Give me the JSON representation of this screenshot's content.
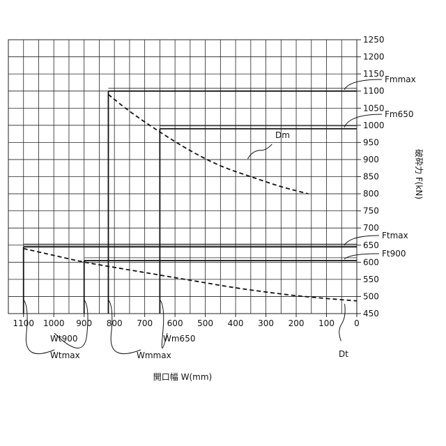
{
  "chart_data": {
    "type": "line",
    "xlabel": "開口幅 W(mm)",
    "ylabel": "破砕力 F(kN)",
    "xlim": [
      1150,
      0
    ],
    "ylim": [
      450,
      1250
    ],
    "x_ticks": [
      1100,
      1000,
      900,
      800,
      700,
      600,
      500,
      400,
      300,
      200,
      100,
      0
    ],
    "y_ticks": [
      450,
      500,
      550,
      600,
      650,
      700,
      750,
      800,
      850,
      900,
      950,
      1000,
      1050,
      1100,
      1150,
      1200,
      1250
    ],
    "grid": true,
    "series": [
      {
        "name": "Dm",
        "style": "dashed",
        "x": [
          820,
          750,
          650,
          550,
          450,
          350,
          250,
          160
        ],
        "y": [
          1090,
          1040,
          980,
          925,
          880,
          850,
          820,
          800
        ]
      },
      {
        "name": "Dt",
        "style": "dashed",
        "x": [
          1100,
          1000,
          900,
          800,
          700,
          600,
          500,
          400,
          300,
          200,
          100,
          0
        ],
        "y": [
          640,
          620,
          600,
          585,
          570,
          555,
          540,
          525,
          513,
          502,
          494,
          487
        ]
      }
    ],
    "reference_lines": [
      {
        "label": "Fmmax",
        "y": 1100,
        "x_from": 820,
        "x_to": 0
      },
      {
        "label": "Fm650",
        "y": 990,
        "x_from": 650,
        "x_to": 0
      },
      {
        "label": "Ftmax",
        "y": 645,
        "x_from": 1100,
        "x_to": 0
      },
      {
        "label": "Ft900",
        "y": 605,
        "x_from": 900,
        "x_to": 0
      }
    ],
    "verticals": [
      {
        "label": "Wtmax",
        "x": 1100,
        "y_from": 450,
        "y_to": 645
      },
      {
        "label": "Wt900",
        "x": 900,
        "y_from": 450,
        "y_to": 605
      },
      {
        "label": "Wmmax",
        "x": 820,
        "y_from": 450,
        "y_to": 1100
      },
      {
        "label": "Wm650",
        "x": 650,
        "y_from": 450,
        "y_to": 990
      }
    ]
  }
}
